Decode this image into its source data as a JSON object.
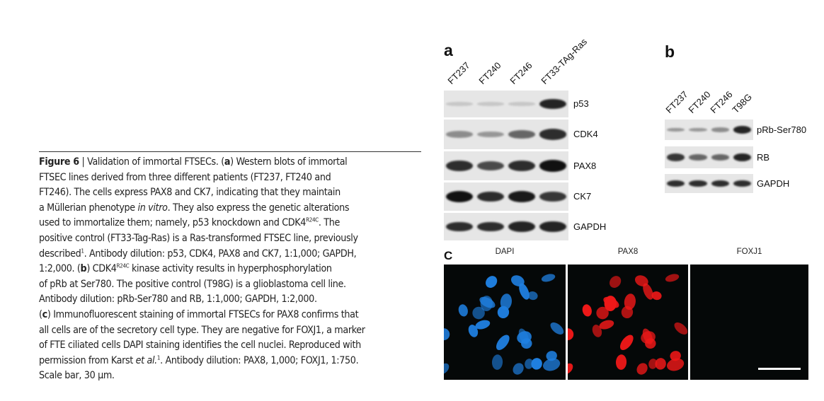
{
  "caption": {
    "lines": [
      [
        "Figure 6",
        " | Validation of immortal FTSECs. (",
        "a",
        ") Western blots of immortal"
      ],
      "FTSEC lines derived from three different patients (FT237, FT240 and",
      "FT246). The cells express PAX8 and CK7, indicating that they maintain",
      [
        "a Müllerian phenotype ",
        "in vitro",
        ". They also express the genetic alterations"
      ],
      [
        "used to immortalize them; namely, p53 knockdown and CDK4",
        "R24C",
        ". The"
      ],
      "positive control (FT33-Tag-Ras) is a Ras-transformed FTSEC line, previously",
      [
        "described",
        "1",
        ". Antibody dilution: p53, CDK4, PAX8 and CK7, 1:1,000; GAPDH,"
      ],
      [
        "1:2,000. (",
        "b",
        ") CDK4",
        "R24C",
        " kinase activity results in hyperphosphorylation"
      ],
      "of pRb at Ser780. The positive control (T98G) is a glioblastoma cell line.",
      "Antibody dilution: pRb-Ser780 and RB, 1:1,000; GAPDH, 1:2,000.",
      [
        "(",
        "c",
        ") Immunofluorescent staining of immortal FTSECs for PAX8 confirms that"
      ],
      "all cells are of the secretory cell type. They are negative for FOXJ1, a marker",
      "of FTE ciliated cells DAPI staining identifies the cell nuclei. Reproduced with",
      [
        "permission from Karst ",
        "et al.",
        "1",
        ". Antibody dilution: PAX8, 1,000; FOXJ1, 1:750."
      ],
      "Scale bar, 30 µm."
    ]
  },
  "panel_a": {
    "letter": "a",
    "lanes": [
      "FT237",
      "FT240",
      "FT246",
      "FT33-TAg-Ras"
    ],
    "blots": [
      {
        "label": "p53",
        "intensity": [
          0.05,
          0.05,
          0.05,
          0.9
        ]
      },
      {
        "label": "CDK4",
        "intensity": [
          0.35,
          0.3,
          0.55,
          0.85
        ]
      },
      {
        "label": "PAX8",
        "intensity": [
          0.85,
          0.7,
          0.85,
          1.0
        ]
      },
      {
        "label": "CK7",
        "intensity": [
          1.0,
          0.85,
          0.95,
          0.8
        ]
      },
      {
        "label": "GAPDH",
        "intensity": [
          0.85,
          0.85,
          0.9,
          0.9
        ]
      }
    ]
  },
  "panel_b": {
    "letter": "b",
    "lanes": [
      "FT237",
      "FT240",
      "FT246",
      "T98G"
    ],
    "blots": [
      {
        "label": "pRb-Ser780",
        "intensity": [
          0.3,
          0.3,
          0.35,
          0.9
        ]
      },
      {
        "label": "RB",
        "intensity": [
          0.8,
          0.55,
          0.55,
          0.9
        ]
      },
      {
        "label": "GAPDH",
        "intensity": [
          0.85,
          0.85,
          0.85,
          0.85
        ]
      }
    ]
  },
  "panel_c": {
    "letter": "C",
    "images": [
      {
        "label": "DAPI",
        "color": "#1f7fe0"
      },
      {
        "label": "PAX8",
        "color": "#ee1818"
      },
      {
        "label": "FOXJ1",
        "color": "#0a1010"
      }
    ],
    "scale_bar_color": "#ffffff"
  }
}
